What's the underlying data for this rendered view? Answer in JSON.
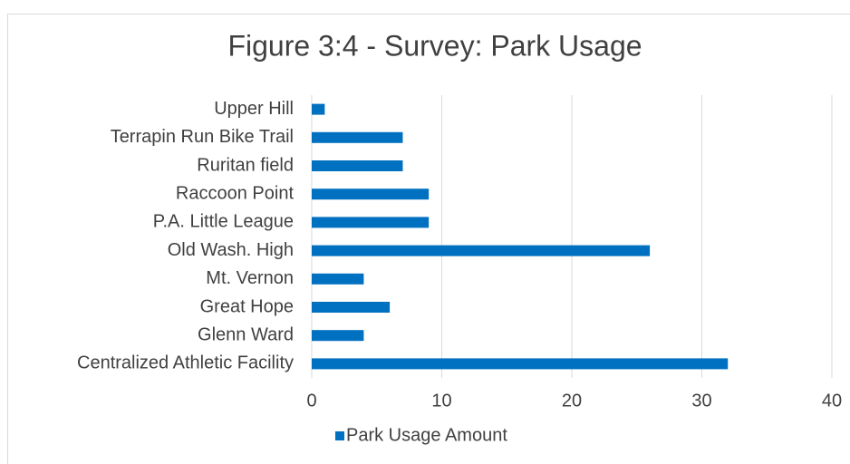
{
  "chart_data": {
    "type": "bar",
    "orientation": "horizontal",
    "title": "Figure 3:4 - Survey: Park Usage",
    "categories": [
      "Upper Hill",
      "Terrapin Run Bike Trail",
      "Ruritan field",
      "Raccoon Point",
      "P.A. Little League",
      "Old Wash. High",
      "Mt. Vernon",
      "Great Hope",
      "Glenn Ward",
      "Centralized Athletic Facility"
    ],
    "series": [
      {
        "name": "Park Usage Amount",
        "color": "#0070c0",
        "values": [
          1,
          7,
          7,
          9,
          9,
          26,
          4,
          6,
          4,
          32
        ]
      }
    ],
    "xlim": [
      0,
      40
    ],
    "xticks": [
      0,
      10,
      20,
      30,
      40
    ],
    "grid": true,
    "legend": "bottom"
  }
}
